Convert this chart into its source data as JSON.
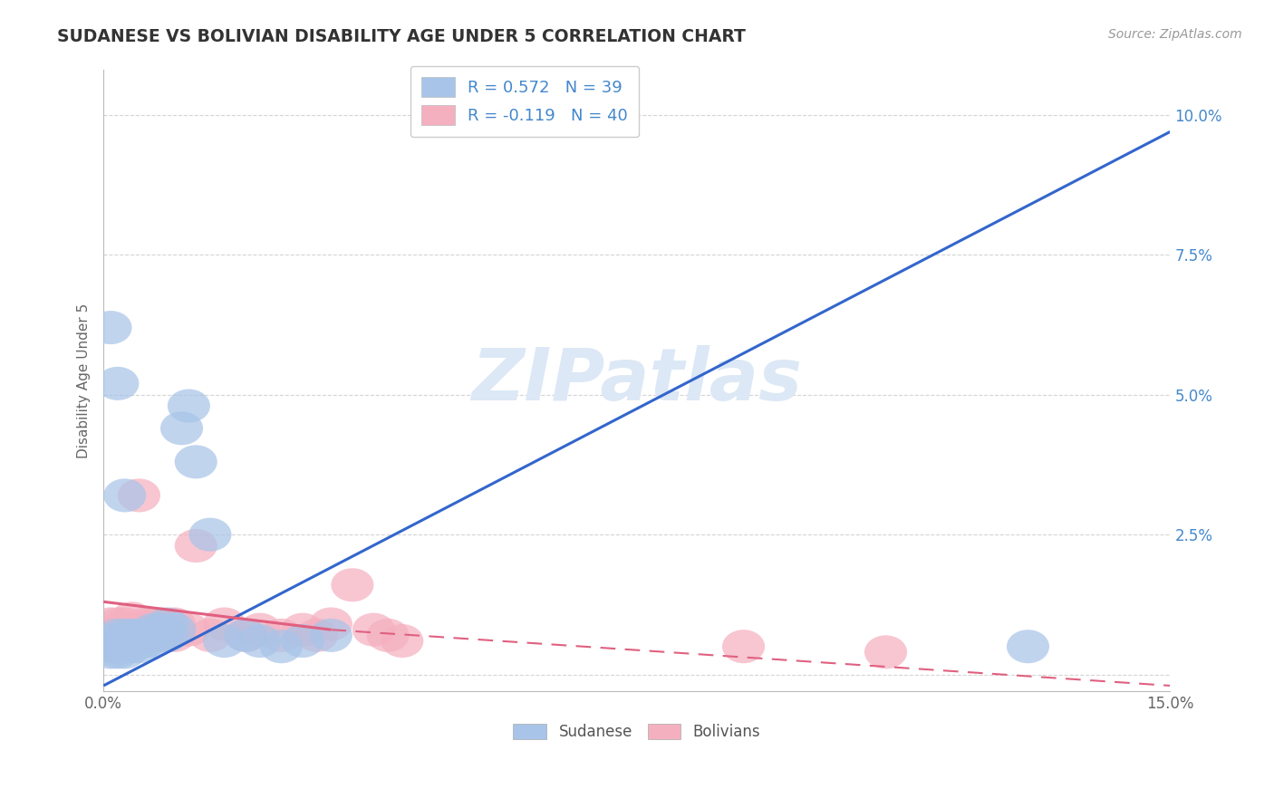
{
  "title": "SUDANESE VS BOLIVIAN DISABILITY AGE UNDER 5 CORRELATION CHART",
  "source": "Source: ZipAtlas.com",
  "ylabel": "Disability Age Under 5",
  "xlim": [
    0.0,
    0.15
  ],
  "ylim": [
    -0.003,
    0.108
  ],
  "yticks": [
    0.0,
    0.025,
    0.05,
    0.075,
    0.1
  ],
  "ytick_labels": [
    "",
    "2.5%",
    "5.0%",
    "7.5%",
    "10.0%"
  ],
  "xtick_labels": [
    "0.0%",
    "",
    "",
    "",
    "",
    "",
    "15.0%"
  ],
  "xticks": [
    0.0,
    0.025,
    0.05,
    0.075,
    0.1,
    0.125,
    0.15
  ],
  "legend_r_sudanese": "R = 0.572",
  "legend_n_sudanese": "N = 39",
  "legend_r_bolivian": "R = -0.119",
  "legend_n_bolivian": "N = 40",
  "sudanese_color": "#a8c4e8",
  "bolivian_color": "#f5b0c0",
  "line_sudanese_color": "#3366cc",
  "line_bolivian_color": "#e06080",
  "watermark_color": "#dce8f5",
  "bg_color": "#ffffff",
  "grid_color": "#d0d0d0",
  "title_color": "#333333",
  "source_color": "#999999",
  "tick_color": "#4488cc",
  "axis_color": "#bbbbbb",
  "label_color": "#666666",
  "legend_text_color": "#4488cc",
  "bottom_legend_color": "#555555",
  "sud_line_x0": 0.0,
  "sud_line_y0": -0.002,
  "sud_line_x1": 0.15,
  "sud_line_y1": 0.097,
  "bol_line_solid_x0": 0.0,
  "bol_line_solid_y0": 0.013,
  "bol_line_solid_x1": 0.032,
  "bol_line_solid_y1": 0.008,
  "bol_line_dash_x0": 0.032,
  "bol_line_dash_y0": 0.008,
  "bol_line_dash_x1": 0.15,
  "bol_line_dash_y1": -0.002,
  "sudanese_x": [
    0.001,
    0.001,
    0.001,
    0.002,
    0.002,
    0.002,
    0.003,
    0.003,
    0.003,
    0.003,
    0.004,
    0.004,
    0.004,
    0.005,
    0.005,
    0.005,
    0.006,
    0.006,
    0.007,
    0.007,
    0.008,
    0.008,
    0.009,
    0.009,
    0.01,
    0.011,
    0.012,
    0.013,
    0.015,
    0.017,
    0.02,
    0.022,
    0.025,
    0.028,
    0.032,
    0.001,
    0.002,
    0.003,
    0.13
  ],
  "sudanese_y": [
    0.004,
    0.005,
    0.006,
    0.004,
    0.005,
    0.007,
    0.004,
    0.005,
    0.006,
    0.007,
    0.005,
    0.006,
    0.007,
    0.005,
    0.006,
    0.007,
    0.006,
    0.007,
    0.006,
    0.008,
    0.007,
    0.008,
    0.007,
    0.009,
    0.008,
    0.044,
    0.048,
    0.038,
    0.025,
    0.006,
    0.007,
    0.006,
    0.005,
    0.006,
    0.007,
    0.062,
    0.052,
    0.032,
    0.005
  ],
  "bolivian_x": [
    0.001,
    0.001,
    0.001,
    0.002,
    0.002,
    0.002,
    0.003,
    0.003,
    0.003,
    0.004,
    0.004,
    0.004,
    0.005,
    0.005,
    0.005,
    0.006,
    0.006,
    0.007,
    0.007,
    0.008,
    0.008,
    0.009,
    0.01,
    0.01,
    0.012,
    0.013,
    0.015,
    0.017,
    0.02,
    0.022,
    0.025,
    0.028,
    0.03,
    0.032,
    0.035,
    0.038,
    0.04,
    0.042,
    0.09,
    0.11
  ],
  "bolivian_y": [
    0.005,
    0.007,
    0.009,
    0.005,
    0.007,
    0.009,
    0.005,
    0.007,
    0.009,
    0.006,
    0.008,
    0.01,
    0.006,
    0.008,
    0.032,
    0.007,
    0.009,
    0.007,
    0.009,
    0.007,
    0.009,
    0.008,
    0.007,
    0.009,
    0.008,
    0.023,
    0.007,
    0.009,
    0.007,
    0.008,
    0.007,
    0.008,
    0.007,
    0.009,
    0.016,
    0.008,
    0.007,
    0.006,
    0.005,
    0.004
  ]
}
